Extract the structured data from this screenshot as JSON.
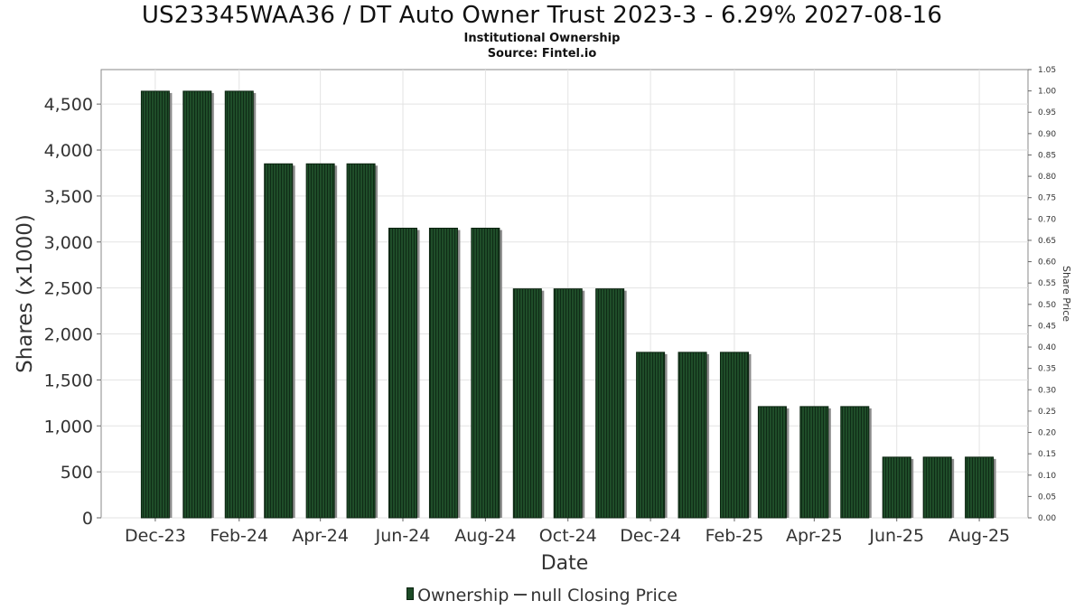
{
  "header": {
    "title": "US23345WAA36 / DT Auto Owner Trust 2023-3 - 6.29% 2027-08-16",
    "subtitle1": "Institutional Ownership",
    "subtitle2": "Source: Fintel.io"
  },
  "legend": {
    "ownership_label": "Ownership",
    "price_label": "null Closing Price"
  },
  "colors": {
    "bar_fill": "#1f4d29",
    "bar_shadow": "#8c8c8c",
    "grid": "#e3e3e3"
  },
  "chart_data": {
    "type": "bar",
    "title": "US23345WAA36 / DT Auto Owner Trust 2023-3 - 6.29% 2027-08-16",
    "xlabel": "Date",
    "ylabel": "Shares (x1000)",
    "y2label": "Share Price",
    "ylim": [
      0,
      4875
    ],
    "y2lim": [
      0,
      1.05
    ],
    "grid": true,
    "legend_position": "bottom",
    "x_ticks": [
      "Dec-23",
      "Feb-24",
      "Apr-24",
      "Jun-24",
      "Aug-24",
      "Oct-24",
      "Dec-24",
      "Feb-25",
      "Apr-25",
      "Jun-25",
      "Aug-25"
    ],
    "y_ticks": [
      "0",
      "500",
      "1,000",
      "1,500",
      "2,000",
      "2,500",
      "3,000",
      "3,500",
      "4,000",
      "4,500"
    ],
    "y2_ticks": [
      "0.00",
      "0.05",
      "0.10",
      "0.15",
      "0.20",
      "0.25",
      "0.30",
      "0.35",
      "0.40",
      "0.45",
      "0.50",
      "0.55",
      "0.60",
      "0.65",
      "0.70",
      "0.75",
      "0.80",
      "0.85",
      "0.90",
      "0.95",
      "1.00",
      "1.05"
    ],
    "x": [
      "2023-12-15",
      "2024-01-15",
      "2024-02-15",
      "2024-03-15",
      "2024-04-15",
      "2024-05-15",
      "2024-06-15",
      "2024-07-15",
      "2024-08-15",
      "2024-09-15",
      "2024-10-15",
      "2024-11-15",
      "2024-12-15",
      "2025-01-15",
      "2025-02-15",
      "2025-03-15",
      "2025-04-15",
      "2025-05-15",
      "2025-06-15",
      "2025-07-15",
      "2025-08-15"
    ],
    "series": [
      {
        "name": "Ownership",
        "values": [
          4640,
          4640,
          4640,
          3850,
          3850,
          3850,
          3150,
          3150,
          3150,
          2490,
          2490,
          2490,
          1800,
          1800,
          1800,
          1210,
          1210,
          1210,
          660,
          660,
          660
        ]
      }
    ]
  }
}
